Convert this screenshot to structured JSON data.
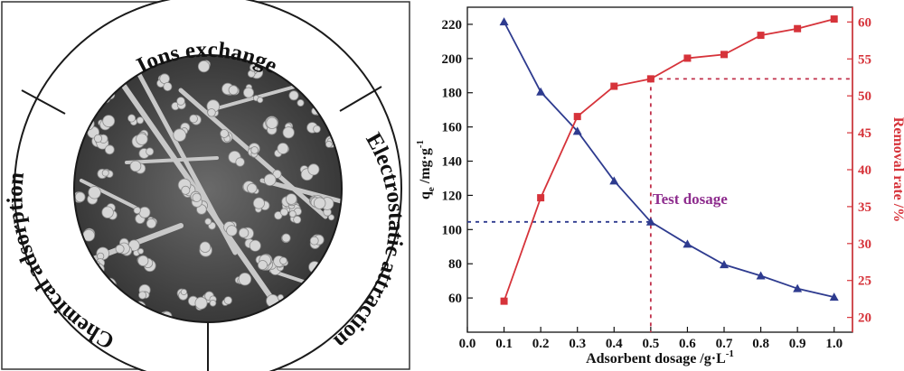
{
  "diagram": {
    "segments": [
      {
        "label": "Ions exchange"
      },
      {
        "label": "Electrostatic attraction"
      },
      {
        "label": "Chemical adsorption"
      }
    ]
  },
  "chart_data": {
    "type": "line",
    "title": "",
    "xlabel": "Adsorbent dosage /g·L",
    "xlabel_sup": "-1",
    "ylabel_left": {
      "base": "q",
      "sub": "e",
      "rest": " /mg·g",
      "sup": "-1"
    },
    "ylabel_right": "Removal rate /%",
    "xlim": [
      0.0,
      1.05
    ],
    "ylim_left": [
      40,
      230
    ],
    "ylim_right": [
      18,
      62
    ],
    "x_ticks": [
      "0.0",
      "0.1",
      "0.2",
      "0.3",
      "0.4",
      "0.5",
      "0.6",
      "0.7",
      "0.8",
      "0.9",
      "1.0"
    ],
    "y_left_ticks": [
      "60",
      "80",
      "100",
      "120",
      "140",
      "160",
      "180",
      "200",
      "220"
    ],
    "y_right_ticks": [
      "20",
      "25",
      "30",
      "35",
      "40",
      "45",
      "50",
      "55",
      "60"
    ],
    "series": [
      {
        "axis": "left",
        "color": "#2e3b8f",
        "marker": "triangle",
        "x": [
          0.1,
          0.2,
          0.3,
          0.4,
          0.5,
          0.6,
          0.7,
          0.8,
          0.9,
          1.0
        ],
        "y": [
          221.5,
          180.5,
          157.5,
          128.5,
          104.5,
          91.5,
          79.5,
          73,
          65.5,
          60.5
        ]
      },
      {
        "axis": "right",
        "color": "#d6333a",
        "marker": "square",
        "x": [
          0.1,
          0.2,
          0.3,
          0.4,
          0.5,
          0.6,
          0.7,
          0.8,
          0.9,
          1.0
        ],
        "y": [
          22.2,
          36.2,
          47.2,
          51.3,
          52.3,
          55.1,
          55.6,
          58.2,
          59.1,
          60.4
        ]
      }
    ],
    "annotation": {
      "text": "Test dosage",
      "color": "#8e2d8e",
      "x": 0.5
    },
    "reference_lines": {
      "vertical_x": 0.5,
      "left_horizontal_y": 104.5,
      "right_horizontal_y": 52.3,
      "blue_color": "#2e3b8f",
      "red_color": "#c0304a"
    },
    "colors": {
      "left_axis": "#111111",
      "right_axis": "#d6333a"
    }
  }
}
